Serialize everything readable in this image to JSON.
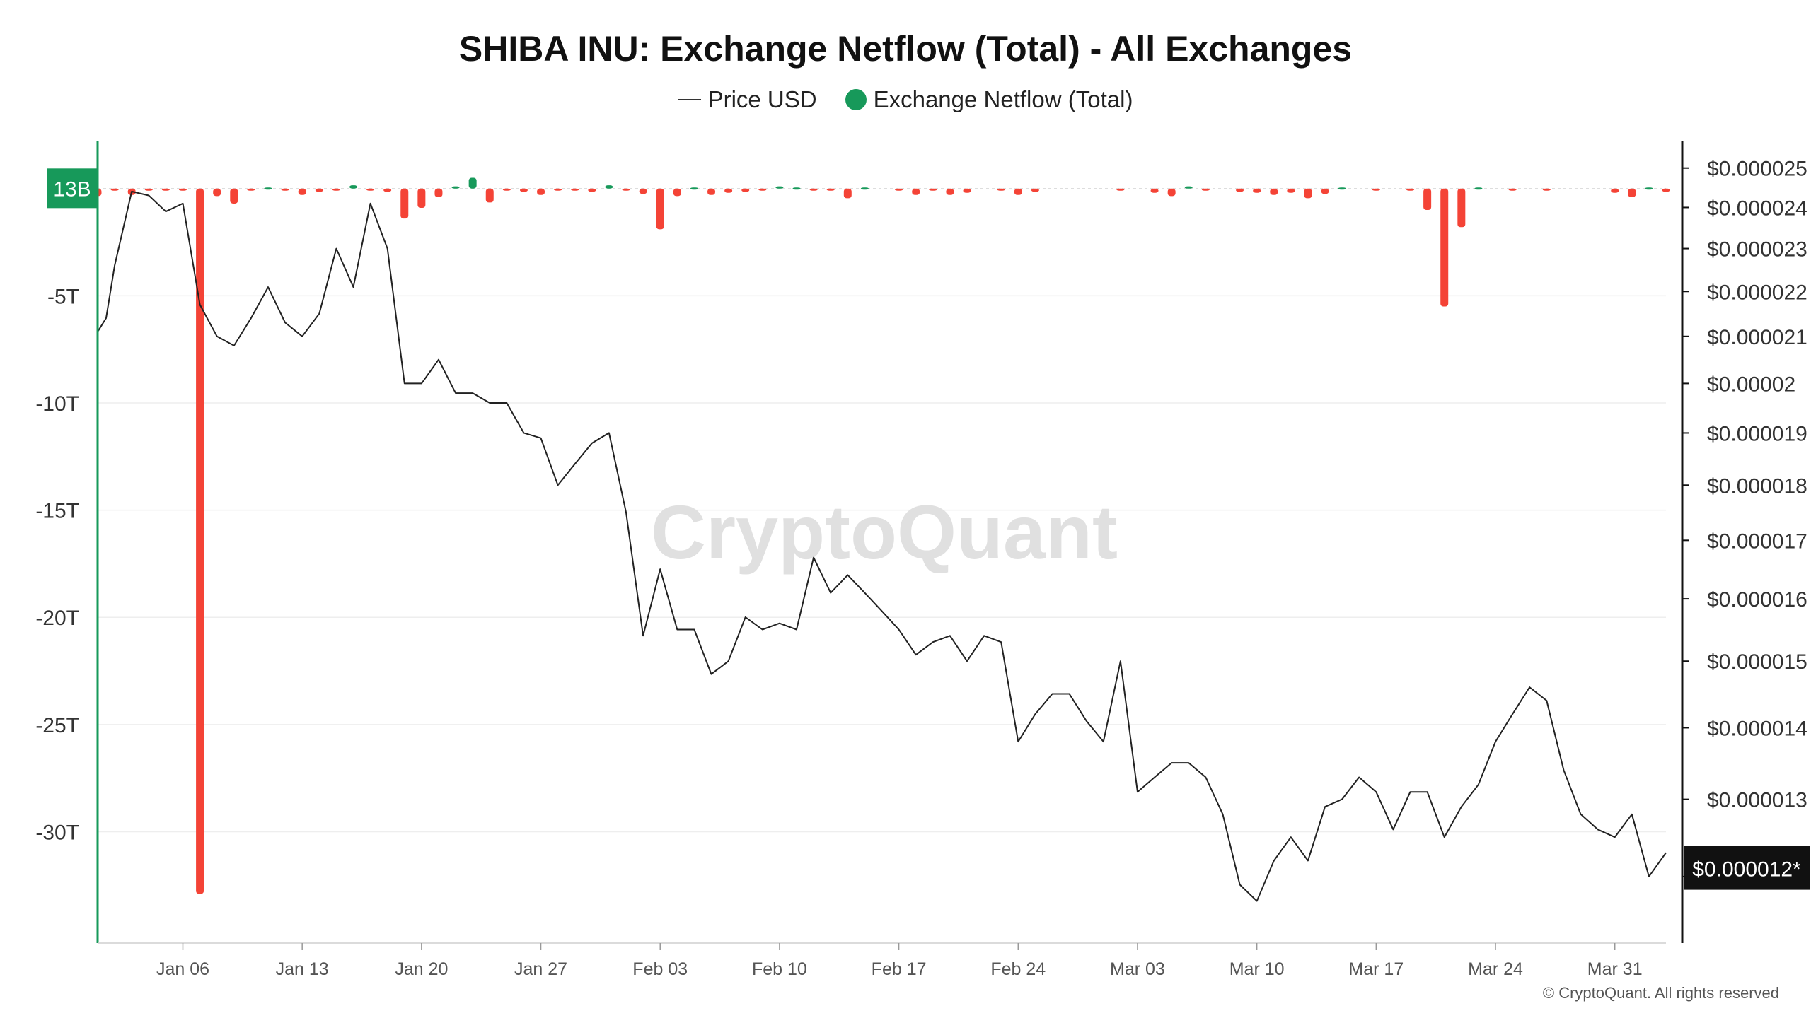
{
  "title": "SHIBA INU: Exchange Netflow (Total) - All Exchanges",
  "legend": {
    "price": "Price USD",
    "netflow": "Exchange Netflow (Total)"
  },
  "watermark": "CryptoQuant",
  "copyright": "© CryptoQuant. All rights reserved",
  "colors": {
    "inflow": "#f44336",
    "outflow": "#17995a",
    "price_line": "#222222",
    "left_axis": "#17995a",
    "badge_bg": "#17995a",
    "price_badge_bg": "#111111",
    "watermark": "#dcdcdc"
  },
  "chart_data": {
    "type": "bar",
    "left_axis": {
      "ylim": [
        -34.8,
        2.2
      ],
      "ticks": [
        -5,
        -10,
        -15,
        -20,
        -25,
        -30
      ],
      "tick_labels": [
        "-5T",
        "-10T",
        "-15T",
        "-20T",
        "-25T",
        "-30T"
      ],
      "badge_value": 0.013,
      "badge_label": "13B"
    },
    "right_axis": {
      "scale": "log",
      "ylim": [
        1.13e-05,
        2.57e-05
      ],
      "ticks": [
        2.5e-05,
        2.4e-05,
        2.3e-05,
        2.2e-05,
        2.1e-05,
        2e-05,
        1.9e-05,
        1.8e-05,
        1.7e-05,
        1.6e-05,
        1.5e-05,
        1.4e-05,
        1.3e-05,
        1.2e-05
      ],
      "tick_labels": [
        "$0.000025",
        "$0.000024",
        "$0.000023",
        "$0.000022",
        "$0.000021",
        "$0.00002",
        "$0.000019",
        "$0.000018",
        "$0.000017",
        "$0.000016",
        "$0.000015",
        "$0.000014",
        "$0.000013",
        "$0.000012"
      ],
      "badge_value": 1.21e-05,
      "badge_label": "$0.000012*"
    },
    "x_axis": {
      "start_date": "2025-01-01",
      "end_date": "2025-04-03",
      "ticks": [
        "Jan 06",
        "Jan 13",
        "Jan 20",
        "Jan 27",
        "Feb 03",
        "Feb 10",
        "Feb 17",
        "Feb 24",
        "Mar 03",
        "Mar 10",
        "Mar 17",
        "Mar 24",
        "Mar 31"
      ],
      "tick_dates": [
        "2025-01-06",
        "2025-01-13",
        "2025-01-20",
        "2025-01-27",
        "2025-02-03",
        "2025-02-10",
        "2025-02-17",
        "2025-02-24",
        "2025-03-03",
        "2025-03-10",
        "2025-03-17",
        "2025-03-24",
        "2025-03-31"
      ]
    },
    "series": [
      {
        "name": "Exchange Netflow (Total)",
        "type": "bar",
        "unit": "T",
        "points": [
          [
            "2025-01-01",
            -0.35
          ],
          [
            "2025-01-02",
            -0.1
          ],
          [
            "2025-01-03",
            -0.3
          ],
          [
            "2025-01-04",
            -0.05
          ],
          [
            "2025-01-05",
            -0.05
          ],
          [
            "2025-01-06",
            -0.1
          ],
          [
            "2025-01-07",
            -32.9
          ],
          [
            "2025-01-08",
            -0.35
          ],
          [
            "2025-01-09",
            -0.7
          ],
          [
            "2025-01-10",
            -0.05
          ],
          [
            "2025-01-11",
            0.05
          ],
          [
            "2025-01-12",
            -0.1
          ],
          [
            "2025-01-13",
            -0.3
          ],
          [
            "2025-01-14",
            -0.15
          ],
          [
            "2025-01-15",
            -0.05
          ],
          [
            "2025-01-16",
            0.15
          ],
          [
            "2025-01-17",
            -0.05
          ],
          [
            "2025-01-18",
            -0.15
          ],
          [
            "2025-01-19",
            -1.4
          ],
          [
            "2025-01-20",
            -0.9
          ],
          [
            "2025-01-21",
            -0.4
          ],
          [
            "2025-01-22",
            0.1
          ],
          [
            "2025-01-23",
            0.5
          ],
          [
            "2025-01-24",
            -0.65
          ],
          [
            "2025-01-25",
            -0.05
          ],
          [
            "2025-01-26",
            -0.15
          ],
          [
            "2025-01-27",
            -0.3
          ],
          [
            "2025-01-28",
            -0.05
          ],
          [
            "2025-01-29",
            -0.1
          ],
          [
            "2025-01-30",
            -0.15
          ],
          [
            "2025-01-31",
            0.15
          ],
          [
            "2025-02-01",
            -0.1
          ],
          [
            "2025-02-02",
            -0.25
          ],
          [
            "2025-02-03",
            -1.9
          ],
          [
            "2025-02-04",
            -0.35
          ],
          [
            "2025-02-05",
            0.05
          ],
          [
            "2025-02-06",
            -0.3
          ],
          [
            "2025-02-07",
            -0.2
          ],
          [
            "2025-02-08",
            -0.15
          ],
          [
            "2025-02-09",
            -0.1
          ],
          [
            "2025-02-10",
            0.1
          ],
          [
            "2025-02-11",
            0.05
          ],
          [
            "2025-02-12",
            -0.05
          ],
          [
            "2025-02-13",
            -0.05
          ],
          [
            "2025-02-14",
            -0.45
          ],
          [
            "2025-02-15",
            0.05
          ],
          [
            "2025-02-17",
            -0.1
          ],
          [
            "2025-02-18",
            -0.3
          ],
          [
            "2025-02-19",
            -0.05
          ],
          [
            "2025-02-20",
            -0.3
          ],
          [
            "2025-02-21",
            -0.2
          ],
          [
            "2025-02-23",
            -0.05
          ],
          [
            "2025-02-24",
            -0.3
          ],
          [
            "2025-02-25",
            -0.15
          ],
          [
            "2025-03-02",
            -0.1
          ],
          [
            "2025-03-04",
            -0.2
          ],
          [
            "2025-03-05",
            -0.35
          ],
          [
            "2025-03-06",
            0.1
          ],
          [
            "2025-03-07",
            -0.1
          ],
          [
            "2025-03-09",
            -0.15
          ],
          [
            "2025-03-10",
            -0.2
          ],
          [
            "2025-03-11",
            -0.3
          ],
          [
            "2025-03-12",
            -0.2
          ],
          [
            "2025-03-13",
            -0.45
          ],
          [
            "2025-03-14",
            -0.25
          ],
          [
            "2025-03-15",
            0.05
          ],
          [
            "2025-03-17",
            -0.1
          ],
          [
            "2025-03-19",
            -0.05
          ],
          [
            "2025-03-20",
            -1.0
          ],
          [
            "2025-03-21",
            -5.5
          ],
          [
            "2025-03-22",
            -1.8
          ],
          [
            "2025-03-23",
            0.05
          ],
          [
            "2025-03-25",
            -0.05
          ],
          [
            "2025-03-27",
            -0.05
          ],
          [
            "2025-03-31",
            -0.2
          ],
          [
            "2025-04-01",
            -0.4
          ],
          [
            "2025-04-02",
            0.05
          ],
          [
            "2025-04-03",
            -0.15
          ]
        ]
      },
      {
        "name": "Price USD",
        "type": "line",
        "points": [
          [
            "2025-01-01",
            2.11e-05
          ],
          [
            "2025-01-01T12",
            2.14e-05
          ],
          [
            "2025-01-02",
            2.26e-05
          ],
          [
            "2025-01-03",
            2.44e-05
          ],
          [
            "2025-01-04",
            2.43e-05
          ],
          [
            "2025-01-05",
            2.39e-05
          ],
          [
            "2025-01-06",
            2.41e-05
          ],
          [
            "2025-01-07",
            2.17e-05
          ],
          [
            "2025-01-08",
            2.1e-05
          ],
          [
            "2025-01-09",
            2.08e-05
          ],
          [
            "2025-01-10",
            2.14e-05
          ],
          [
            "2025-01-11",
            2.21e-05
          ],
          [
            "2025-01-12",
            2.13e-05
          ],
          [
            "2025-01-13",
            2.1e-05
          ],
          [
            "2025-01-14",
            2.15e-05
          ],
          [
            "2025-01-15",
            2.3e-05
          ],
          [
            "2025-01-16",
            2.21e-05
          ],
          [
            "2025-01-17",
            2.41e-05
          ],
          [
            "2025-01-18",
            2.3e-05
          ],
          [
            "2025-01-19",
            2e-05
          ],
          [
            "2025-01-20",
            2e-05
          ],
          [
            "2025-01-21",
            2.05e-05
          ],
          [
            "2025-01-22",
            1.98e-05
          ],
          [
            "2025-01-23",
            1.98e-05
          ],
          [
            "2025-01-24",
            1.96e-05
          ],
          [
            "2025-01-25",
            1.96e-05
          ],
          [
            "2025-01-26",
            1.9e-05
          ],
          [
            "2025-01-27",
            1.89e-05
          ],
          [
            "2025-01-28",
            1.8e-05
          ],
          [
            "2025-01-29",
            1.84e-05
          ],
          [
            "2025-01-30",
            1.88e-05
          ],
          [
            "2025-01-31",
            1.9e-05
          ],
          [
            "2025-02-01",
            1.75e-05
          ],
          [
            "2025-02-02",
            1.54e-05
          ],
          [
            "2025-02-03",
            1.65e-05
          ],
          [
            "2025-02-04",
            1.55e-05
          ],
          [
            "2025-02-05",
            1.55e-05
          ],
          [
            "2025-02-06",
            1.48e-05
          ],
          [
            "2025-02-07",
            1.5e-05
          ],
          [
            "2025-02-08",
            1.57e-05
          ],
          [
            "2025-02-09",
            1.55e-05
          ],
          [
            "2025-02-10",
            1.56e-05
          ],
          [
            "2025-02-11",
            1.55e-05
          ],
          [
            "2025-02-12",
            1.67e-05
          ],
          [
            "2025-02-13",
            1.61e-05
          ],
          [
            "2025-02-14",
            1.64e-05
          ],
          [
            "2025-02-15",
            1.61e-05
          ],
          [
            "2025-02-16",
            1.58e-05
          ],
          [
            "2025-02-17",
            1.55e-05
          ],
          [
            "2025-02-18",
            1.51e-05
          ],
          [
            "2025-02-19",
            1.53e-05
          ],
          [
            "2025-02-20",
            1.54e-05
          ],
          [
            "2025-02-21",
            1.5e-05
          ],
          [
            "2025-02-22",
            1.54e-05
          ],
          [
            "2025-02-23",
            1.53e-05
          ],
          [
            "2025-02-24",
            1.38e-05
          ],
          [
            "2025-02-25",
            1.42e-05
          ],
          [
            "2025-02-26",
            1.45e-05
          ],
          [
            "2025-02-27",
            1.45e-05
          ],
          [
            "2025-02-28",
            1.41e-05
          ],
          [
            "2025-03-01",
            1.38e-05
          ],
          [
            "2025-03-02",
            1.5e-05
          ],
          [
            "2025-03-03",
            1.31e-05
          ],
          [
            "2025-03-04",
            1.33e-05
          ],
          [
            "2025-03-05",
            1.35e-05
          ],
          [
            "2025-03-06",
            1.35e-05
          ],
          [
            "2025-03-07",
            1.33e-05
          ],
          [
            "2025-03-08",
            1.28e-05
          ],
          [
            "2025-03-09",
            1.19e-05
          ],
          [
            "2025-03-10",
            1.17e-05
          ],
          [
            "2025-03-11",
            1.22e-05
          ],
          [
            "2025-03-12",
            1.25e-05
          ],
          [
            "2025-03-13",
            1.22e-05
          ],
          [
            "2025-03-14",
            1.29e-05
          ],
          [
            "2025-03-15",
            1.3e-05
          ],
          [
            "2025-03-16",
            1.33e-05
          ],
          [
            "2025-03-17",
            1.31e-05
          ],
          [
            "2025-03-18",
            1.26e-05
          ],
          [
            "2025-03-19",
            1.31e-05
          ],
          [
            "2025-03-20",
            1.31e-05
          ],
          [
            "2025-03-21",
            1.25e-05
          ],
          [
            "2025-03-22",
            1.29e-05
          ],
          [
            "2025-03-23",
            1.32e-05
          ],
          [
            "2025-03-24",
            1.38e-05
          ],
          [
            "2025-03-25",
            1.42e-05
          ],
          [
            "2025-03-26",
            1.46e-05
          ],
          [
            "2025-03-27",
            1.44e-05
          ],
          [
            "2025-03-28",
            1.34e-05
          ],
          [
            "2025-03-29",
            1.28e-05
          ],
          [
            "2025-03-30",
            1.26e-05
          ],
          [
            "2025-03-31",
            1.25e-05
          ],
          [
            "2025-04-01",
            1.28e-05
          ],
          [
            "2025-04-02",
            1.2e-05
          ],
          [
            "2025-04-03",
            1.23e-05
          ]
        ]
      }
    ],
    "grid": true,
    "legend_position": "top-center"
  }
}
